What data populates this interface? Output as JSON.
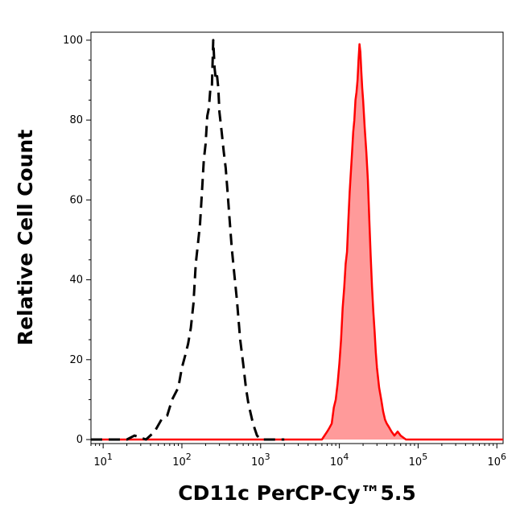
{
  "chart_data": {
    "type": "area",
    "xlabel": "CD11c PerCP-Cy™5.5",
    "ylabel": "Relative Cell Count",
    "x_scale": "log",
    "xlim": [
      7,
      1200000
    ],
    "ylim": [
      -1,
      102
    ],
    "x_ticks": [
      {
        "base": "10",
        "exp": "1",
        "value": 10
      },
      {
        "base": "10",
        "exp": "2",
        "value": 100
      },
      {
        "base": "10",
        "exp": "3",
        "value": 1000
      },
      {
        "base": "10",
        "exp": "4",
        "value": 10000
      },
      {
        "base": "10",
        "exp": "5",
        "value": 100000
      },
      {
        "base": "10",
        "exp": "6",
        "value": 1000000
      }
    ],
    "y_ticks": [
      0,
      20,
      40,
      60,
      80,
      100
    ],
    "grid": false,
    "legend": "none",
    "series": [
      {
        "style": "dashed",
        "color": "#000000",
        "fill": false,
        "x": [
          7,
          20,
          25,
          35,
          45,
          55,
          65,
          75,
          90,
          100,
          110,
          120,
          130,
          140,
          150,
          160,
          170,
          180,
          190,
          200,
          210,
          220,
          230,
          240,
          250,
          260,
          270,
          280,
          290,
          300,
          320,
          340,
          360,
          380,
          400,
          430,
          460,
          500,
          550,
          600,
          650,
          700,
          800,
          900,
          1000,
          1100,
          1200,
          1500,
          2000
        ],
        "y": [
          0,
          0,
          1,
          0,
          2,
          5,
          6,
          10,
          13,
          18,
          21,
          24,
          28,
          34,
          44,
          49,
          54,
          62,
          70,
          74,
          81,
          83,
          88,
          88,
          100,
          93,
          90,
          91,
          88,
          82,
          77,
          72,
          68,
          62,
          56,
          48,
          42,
          35,
          25,
          19,
          13,
          9,
          4,
          1,
          0,
          0,
          0,
          0,
          0
        ]
      },
      {
        "style": "solid",
        "color": "#ff0000",
        "fill": true,
        "fill_color": "#ff9a9a",
        "x": [
          7,
          3000,
          6000,
          7000,
          7500,
          8000,
          8500,
          9000,
          9500,
          10000,
          10500,
          11000,
          11500,
          12000,
          12500,
          13000,
          13500,
          14000,
          14500,
          15000,
          15500,
          16000,
          16500,
          17000,
          17500,
          18000,
          18500,
          19000,
          19500,
          20000,
          21000,
          22000,
          23000,
          24000,
          25000,
          26000,
          27000,
          28000,
          29000,
          30000,
          32000,
          34000,
          36000,
          38000,
          40000,
          43000,
          46000,
          50000,
          55000,
          60000,
          70000,
          90000,
          120000,
          200000,
          500000,
          1200000
        ],
        "y": [
          0,
          0,
          0,
          2,
          3,
          4,
          8,
          10,
          14,
          19,
          25,
          33,
          38,
          44,
          47,
          55,
          62,
          67,
          72,
          77,
          80,
          85,
          87,
          90,
          95,
          99,
          97,
          92,
          88,
          85,
          78,
          72,
          65,
          55,
          46,
          38,
          32,
          27,
          22,
          18,
          13,
          10,
          7,
          5,
          4,
          3,
          2,
          1,
          2,
          1,
          0,
          0,
          0,
          0,
          0,
          0
        ]
      }
    ]
  }
}
